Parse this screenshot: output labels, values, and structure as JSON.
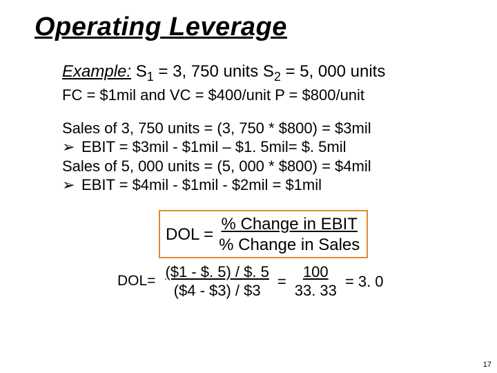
{
  "title": {
    "text": "Operating Leverage",
    "fontsize": 38
  },
  "example": {
    "label": "Example:",
    "s1_prefix": "  S",
    "s1_sub": "1",
    "s1_eq": " = 3, 750 units S",
    "s2_sub": "2",
    "s2_eq": " = 5, 000 units",
    "fc_line": "FC = $1mil and  VC = $400/unit  P = $800/unit",
    "fontsize_main": 24,
    "fontsize_sub": 22
  },
  "calc": {
    "line1": "Sales of 3, 750 units = (3, 750 * $800) = $3mil",
    "bullet": "➢",
    "line2": "EBIT = $3mil - $1mil – $1. 5mil= $. 5mil",
    "line3": "Sales of 5, 000 units = (5, 000 * $800) = $4mil",
    "line4": "EBIT = $4mil - $1mil - $2mil = $1mil",
    "fontsize": 22
  },
  "formula": {
    "dol_label": "DOL =",
    "numerator": "% Change in EBIT",
    "denominator": "% Change in Sales",
    "border_color": "#e08a2e",
    "fontsize": 24
  },
  "dolcalc": {
    "label": "DOL=",
    "num1": "($1 - $. 5) / $. 5",
    "den1": "($4 - $3) / $3",
    "eq1": "=",
    "num2": "100",
    "den2": "33. 33",
    "eq2": "= 3. 0",
    "fontsize": 22,
    "label_fontsize": 21
  },
  "pagenum": {
    "text": "17",
    "fontsize": 11
  }
}
